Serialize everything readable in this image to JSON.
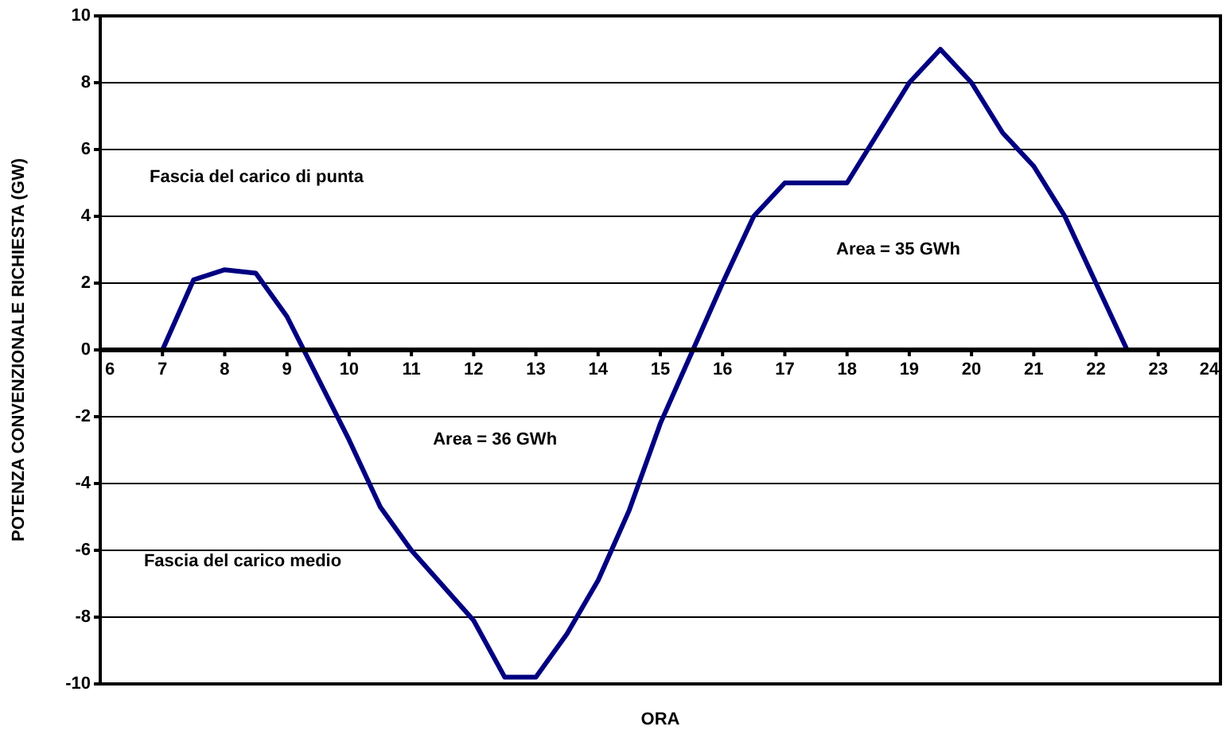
{
  "chart_data": {
    "type": "line",
    "xlabel": "ORA",
    "ylabel": "POTENZA CONVENZIONALE RICHIESTA (GW)",
    "series": [
      {
        "color": "#000080",
        "x": [
          6,
          7,
          7.5,
          8,
          8.5,
          9,
          10,
          10.5,
          11,
          12,
          12.5,
          13,
          13.5,
          14,
          14.5,
          15,
          16,
          16.5,
          17,
          18,
          19,
          19.5,
          20,
          20.5,
          21,
          21.5,
          22.5,
          24
        ],
        "values": [
          0,
          0,
          2.1,
          2.4,
          2.3,
          1.0,
          -2.7,
          -4.7,
          -6.0,
          -8.1,
          -9.8,
          -9.8,
          -8.5,
          -6.9,
          -4.8,
          -2.2,
          2.0,
          4.0,
          5.0,
          5.0,
          8.0,
          9.0,
          8.0,
          6.5,
          5.5,
          4.0,
          0,
          0
        ]
      }
    ],
    "xlim": [
      6,
      24
    ],
    "xticks": [
      6,
      7,
      8,
      9,
      10,
      11,
      12,
      13,
      14,
      15,
      16,
      17,
      18,
      19,
      20,
      21,
      22,
      23,
      24
    ],
    "ylim": [
      -10,
      10
    ],
    "yticks": [
      -10,
      -8,
      -6,
      -4,
      -2,
      0,
      2,
      4,
      6,
      8,
      10
    ],
    "grid": "y",
    "legend": false,
    "marker": "none",
    "line_style": "solid",
    "annotations": [
      "Fascia del carico di punta",
      "Area = 36 GWh",
      "Fascia del carico medio",
      "Area = 35 GWh"
    ]
  }
}
